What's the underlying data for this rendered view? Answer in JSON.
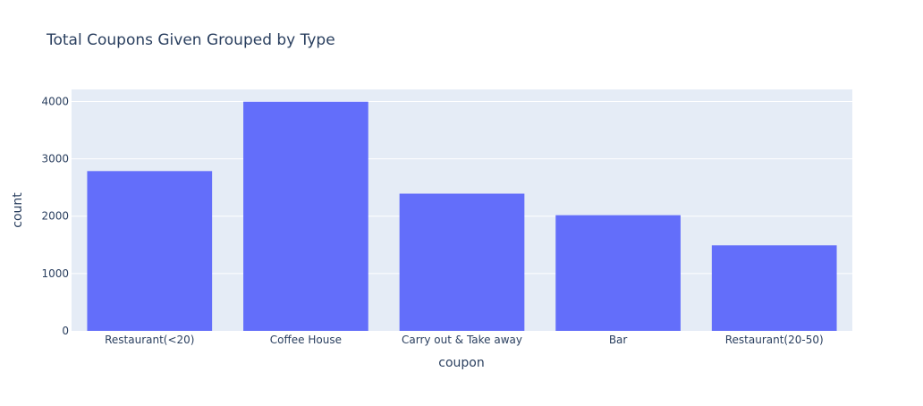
{
  "chart_data": {
    "type": "bar",
    "title": "Total Coupons Given Grouped by Type",
    "xlabel": "coupon",
    "ylabel": "count",
    "categories": [
      "Restaurant(<20)",
      "Coffee House",
      "Carry out & Take away",
      "Bar",
      "Restaurant(20-50)"
    ],
    "values": [
      2786,
      3996,
      2393,
      2017,
      1492
    ],
    "ylim": [
      0,
      4210
    ],
    "yticks": [
      0,
      1000,
      2000,
      3000,
      4000
    ],
    "ytick_labels": [
      "0",
      "1000",
      "2000",
      "3000",
      "4000"
    ],
    "grid": true,
    "colors": {
      "bar": "#636efa",
      "plot_bg": "#e5ecf6",
      "grid": "#ffffff",
      "text": "#2a3f5f",
      "tick_text": "#2a3f5f"
    }
  }
}
